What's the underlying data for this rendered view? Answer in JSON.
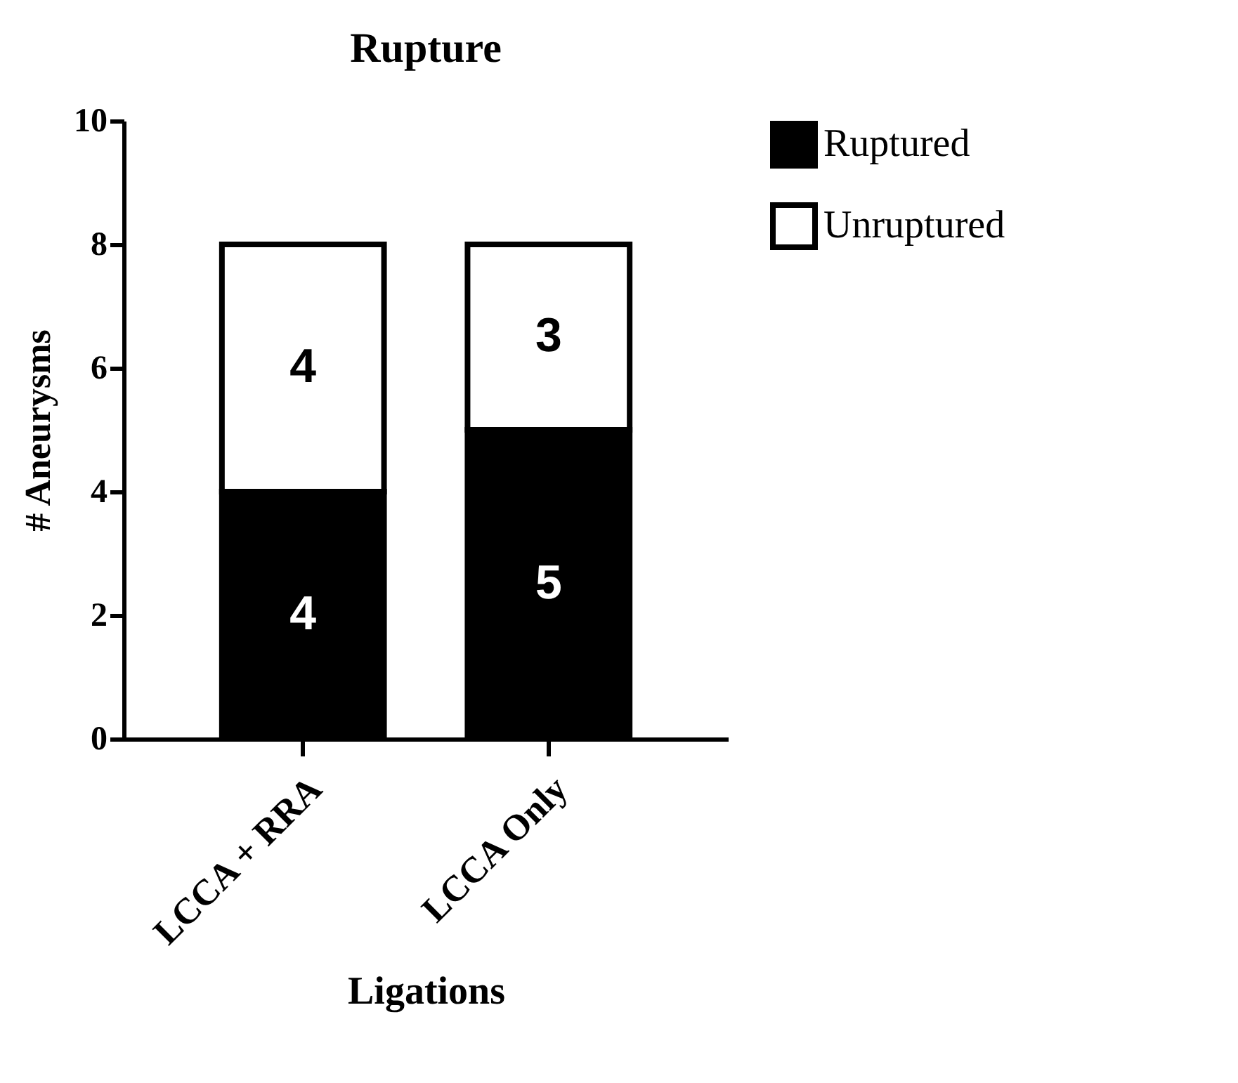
{
  "chart_data": {
    "type": "bar",
    "title": "Rupture",
    "xlabel": "Ligations",
    "ylabel": "# Aneurysms",
    "categories": [
      "LCCA + RRA",
      "LCCA Only"
    ],
    "series": [
      {
        "name": "Ruptured",
        "color": "#000000",
        "values": [
          4,
          5
        ]
      },
      {
        "name": "Unruptured",
        "color": "#ffffff",
        "values": [
          4,
          3
        ]
      }
    ],
    "stacked": true,
    "ylim": [
      0,
      10
    ],
    "yticks": [
      0,
      2,
      4,
      6,
      8,
      10
    ],
    "grid": false,
    "legend": "right",
    "data_labels": true
  }
}
